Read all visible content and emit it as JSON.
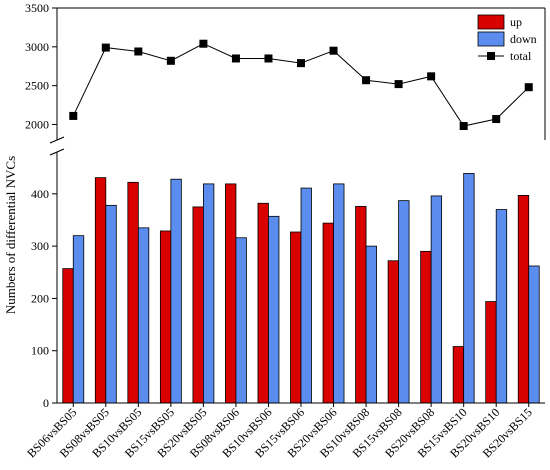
{
  "chart_data": {
    "type": "bar",
    "ylabel": "Numbers of differential NVCs",
    "categories": [
      "BS06vsBS05",
      "BS08vsBS05",
      "BS10vsBS05",
      "BS15vsBS05",
      "BS20vsBS05",
      "BS08vsBS06",
      "BS10vsBS06",
      "BS15vsBS06",
      "BS20vsBS06",
      "BS10vsBS08",
      "BS15vsBS08",
      "BS20vsBS08",
      "BS15vsBS10",
      "BS20vsBS10",
      "BS20vsBS15"
    ],
    "series": [
      {
        "name": "up",
        "chart_type": "bar",
        "color": "#d90000",
        "values": [
          257,
          431,
          422,
          329,
          375,
          419,
          382,
          327,
          344,
          376,
          272,
          290,
          108,
          194,
          397
        ]
      },
      {
        "name": "down",
        "chart_type": "bar",
        "color": "#5b8def",
        "values": [
          320,
          378,
          335,
          428,
          419,
          316,
          357,
          411,
          419,
          300,
          387,
          396,
          439,
          370,
          262
        ]
      },
      {
        "name": "total",
        "chart_type": "line",
        "color": "#000000",
        "marker": "square",
        "values": [
          2110,
          2990,
          2940,
          2820,
          3040,
          2850,
          2850,
          2790,
          2950,
          2570,
          2520,
          2620,
          1980,
          2070,
          2480
        ]
      }
    ],
    "lower_axis": {
      "ylim": [
        0,
        480
      ],
      "ticks": [
        0,
        100,
        200,
        300,
        400
      ]
    },
    "upper_axis": {
      "ylim": [
        1800,
        3500
      ],
      "ticks": [
        2000,
        2500,
        3000,
        3500
      ]
    },
    "axis_break": true,
    "legend_position": "top-right",
    "grid": false
  }
}
